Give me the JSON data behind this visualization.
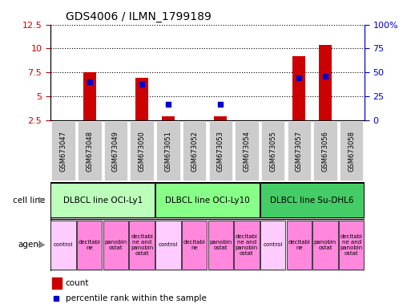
{
  "title": "GDS4006 / ILMN_1799189",
  "samples": [
    "GSM673047",
    "GSM673048",
    "GSM673049",
    "GSM673050",
    "GSM673051",
    "GSM673052",
    "GSM673053",
    "GSM673054",
    "GSM673055",
    "GSM673057",
    "GSM673056",
    "GSM673058"
  ],
  "bar_values": [
    0,
    7.5,
    0,
    6.9,
    2.9,
    0,
    2.9,
    0,
    0,
    9.2,
    10.4,
    0
  ],
  "dot_pct_values": [
    null,
    40,
    null,
    38,
    17,
    null,
    17,
    null,
    null,
    44,
    46,
    null
  ],
  "ylim_left": [
    2.5,
    12.5
  ],
  "ylim_right": [
    0,
    100
  ],
  "yticks_left": [
    2.5,
    5.0,
    7.5,
    10.0,
    12.5
  ],
  "yticks_right": [
    0,
    25,
    50,
    75,
    100
  ],
  "ytick_labels_left": [
    "2.5",
    "5",
    "7.5",
    "10",
    "12.5"
  ],
  "ytick_labels_right": [
    "0",
    "25",
    "50",
    "75",
    "100%"
  ],
  "bar_color": "#cc0000",
  "dot_color": "#0000cc",
  "grid_color": "#000000",
  "cell_line_groups": [
    {
      "label": "DLBCL line OCI-Ly1",
      "start": 0,
      "end": 3,
      "color": "#bbffbb"
    },
    {
      "label": "DLBCL line OCI-Ly10",
      "start": 4,
      "end": 7,
      "color": "#88ff88"
    },
    {
      "label": "DLBCL line Su-DHL6",
      "start": 8,
      "end": 11,
      "color": "#44cc66"
    }
  ],
  "agent_items": [
    {
      "label": "control",
      "idx": 0,
      "is_control": true
    },
    {
      "label": "decitabi\nne",
      "idx": 1,
      "is_control": false
    },
    {
      "label": "panobin\nostat",
      "idx": 2,
      "is_control": false
    },
    {
      "label": "decitabi\nne and\npanobin\nostat",
      "idx": 3,
      "is_control": false
    },
    {
      "label": "control",
      "idx": 4,
      "is_control": true
    },
    {
      "label": "decitabi\nne",
      "idx": 5,
      "is_control": false
    },
    {
      "label": "panobin\nostat",
      "idx": 6,
      "is_control": false
    },
    {
      "label": "decitabi\nne and\npanobin\nostat",
      "idx": 7,
      "is_control": false
    },
    {
      "label": "control",
      "idx": 8,
      "is_control": true
    },
    {
      "label": "decitabi\nne",
      "idx": 9,
      "is_control": false
    },
    {
      "label": "panobin\nostat",
      "idx": 10,
      "is_control": false
    },
    {
      "label": "decitabi\nne and\npanobin\nostat",
      "idx": 11,
      "is_control": false
    }
  ],
  "agent_color_control": "#ffccff",
  "agent_color_other": "#ff88dd",
  "tick_bg_color": "#cccccc",
  "cell_line_row_label": "cell line",
  "agent_row_label": "agent",
  "legend_count_label": "count",
  "legend_pct_label": "percentile rank within the sample",
  "fig_width": 5.23,
  "fig_height": 3.84,
  "dpi": 100
}
